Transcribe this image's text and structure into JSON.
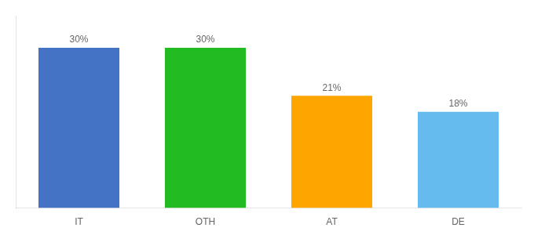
{
  "chart_data": {
    "type": "bar",
    "categories": [
      "IT",
      "OTH",
      "AT",
      "DE"
    ],
    "values": [
      30,
      30,
      21,
      18
    ],
    "value_labels": [
      "30%",
      "30%",
      "21%",
      "18%"
    ],
    "data_labels": true,
    "colors": [
      "#4472c4",
      "#22bb22",
      "#ffa500",
      "#66bbee"
    ],
    "ylim": [
      0,
      36
    ],
    "tick_labels": "x",
    "grid": false
  }
}
